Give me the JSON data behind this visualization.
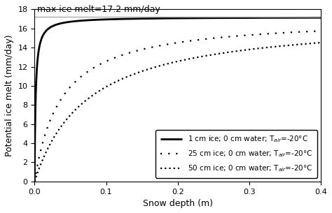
{
  "title_annotation": "max ice melt=17.2 mm/day",
  "xlabel": "Snow depth (m)",
  "ylabel": "Potential ice melt (mm/day)",
  "xlim": [
    0,
    0.4
  ],
  "ylim": [
    0,
    18
  ],
  "yticks": [
    0,
    2,
    4,
    6,
    8,
    10,
    12,
    14,
    16,
    18
  ],
  "xticks": [
    0,
    0.1,
    0.2,
    0.3,
    0.4
  ],
  "max_melt": 17.2,
  "curves": [
    {
      "label": "1 cm ice; 0 cm water; T$_{air}$=-20°C",
      "ice_cm": 1,
      "a": 0.0048,
      "linestyle": "solid",
      "linewidth": 2.0,
      "color": "#000000"
    },
    {
      "label": "25 cm ice; 0 cm water; T$_{air}$=-20°C",
      "ice_cm": 25,
      "a": 0.06,
      "linestyle": "loosely dotted",
      "linewidth": 1.6,
      "color": "#000000"
    },
    {
      "label": "50 cm ice; 0 cm water; T$_{air}$=-20°C",
      "ice_cm": 50,
      "a": 0.119,
      "linestyle": "densely dotted",
      "linewidth": 1.6,
      "color": "#000000"
    }
  ],
  "hline_y": 17.2,
  "hline_color": "#aaaaaa",
  "hline_linewidth": 1.0,
  "background_color": "#ffffff",
  "legend_fontsize": 7.5,
  "axis_fontsize": 9,
  "tick_fontsize": 8
}
